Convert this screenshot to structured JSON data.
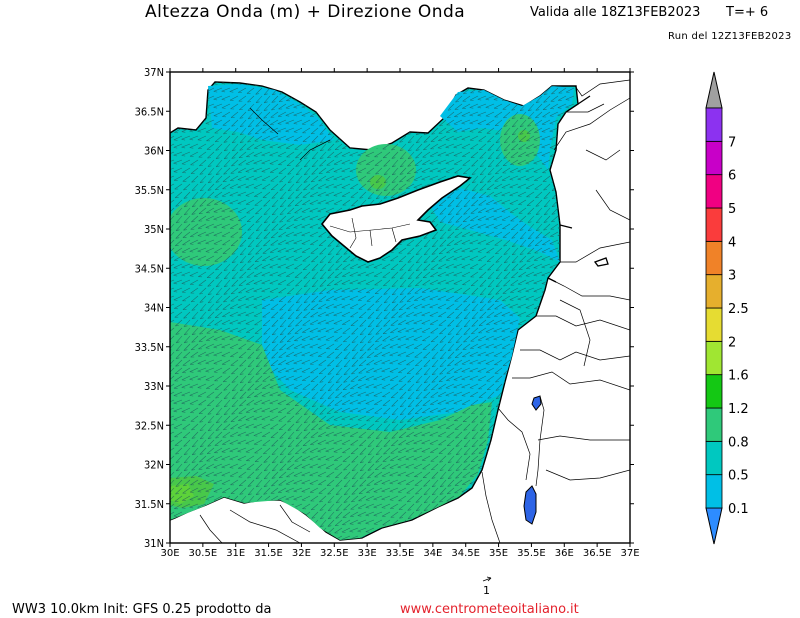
{
  "header": {
    "title": "Altezza Onda (m) + Direzione Onda",
    "valid": "Valida alle 18Z13FEB2023",
    "step": "T=+ 6",
    "run": "Run del 12Z13FEB2023"
  },
  "footer": {
    "model_info": "WW3 10.0km Init: GFS 0.25 prodotto da",
    "site": "www.centrometeoitaliano.it",
    "reference_vector_label": "1"
  },
  "map": {
    "lat_ticks": [
      "37N",
      "36.5N",
      "36N",
      "35.5N",
      "35N",
      "34.5N",
      "34N",
      "33.5N",
      "33N",
      "32.5N",
      "32N",
      "31.5N",
      "31N"
    ],
    "lon_ticks": [
      "30E",
      "30.5E",
      "31E",
      "31.5E",
      "32E",
      "32.5E",
      "33E",
      "33.5E",
      "34E",
      "34.5E",
      "35E",
      "35.5E",
      "36E",
      "36.5E",
      "37E"
    ],
    "lat_range": [
      31,
      37
    ],
    "lon_range": [
      30,
      37
    ],
    "wave_direction_deg_toward": 235
  },
  "legend": {
    "labels": [
      "0.1",
      "0.5",
      "0.8",
      "1.2",
      "1.6",
      "2",
      "2.5",
      "3",
      "4",
      "5",
      "6",
      "7"
    ],
    "colors": [
      "#00bfe6",
      "#00c8c0",
      "#2fc97a",
      "#14c814",
      "#a0e632",
      "#e6dc32",
      "#e6af2d",
      "#f08228",
      "#fa3c3c",
      "#f00082",
      "#c800c8",
      "#8c32f0",
      "#a0a0a0"
    ],
    "bottom_color": "#2d8cff"
  }
}
